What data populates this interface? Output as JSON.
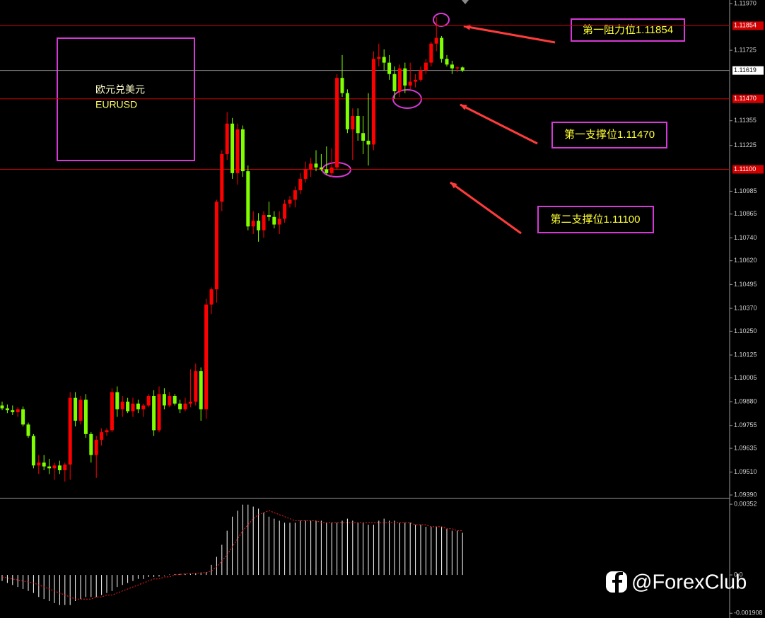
{
  "chart_data": [
    {
      "type": "candlestick",
      "label_name": "欧元兑美元",
      "label_symbol": "EURUSD",
      "annotations": [
        "第一阻力位1.11854",
        "第一支撑位1.11470",
        "第二支撑位1.11100"
      ],
      "up_color": "#ff0000",
      "down_color": "#7fff00",
      "ylim": [
        1.09379,
        1.11989
      ],
      "yticks": [
        {
          "value": 1.1197,
          "label": "1.11970"
        },
        1.11725,
        1.11355,
        1.11225,
        1.10985,
        1.10865,
        {
          "value": 1.1074,
          "label": "1.10740"
        },
        {
          "value": 1.1062,
          "label": "1.10620"
        },
        1.10495,
        {
          "value": 1.1037,
          "label": "1.10370"
        },
        {
          "value": 1.1025,
          "label": "1.10250"
        },
        1.10125,
        1.10005,
        {
          "value": 1.0988,
          "label": "1.09880"
        },
        1.09755,
        1.09635,
        {
          "value": 1.0951,
          "label": "1.09510"
        },
        {
          "value": 1.0939,
          "label": "1.09390"
        }
      ],
      "hlines": [
        {
          "value": 1.11854,
          "label": "1.11854",
          "color": "#d00000"
        },
        {
          "value": 1.1147,
          "label": "1.11470",
          "color": "#d00000"
        },
        {
          "value": 1.111,
          "label": "1.11100",
          "color": "#d00000"
        }
      ],
      "current_price": 1.11619,
      "current_color": "#8a8a8a",
      "open": [
        1.0986,
        1.09845,
        1.09835,
        1.09825,
        1.0984,
        1.0976,
        1.097,
        1.09545,
        1.0956,
        1.0954,
        1.0953,
        1.09545,
        1.0952,
        1.0955,
        1.099,
        1.0978,
        1.0989,
        1.0971,
        1.096,
        1.0968,
        1.0972,
        1.0973,
        1.0993,
        1.0984,
        1.0988,
        1.0983,
        1.0987,
        1.0984,
        1.0986,
        1.0991,
        1.0973,
        1.0992,
        1.0986,
        1.0991,
        1.0987,
        1.0984,
        1.0987,
        1.0988,
        1.1004,
        1.0984,
        1.1039,
        1.1047,
        1.1093,
        1.1118,
        1.1134,
        1.1108,
        1.1131,
        1.1109,
        1.108,
        1.1083,
        1.1078,
        1.1086,
        1.1085,
        1.1081,
        1.1084,
        1.1092,
        1.1094,
        1.1099,
        1.1105,
        1.111,
        1.1113,
        1.1111,
        1.111,
        1.1108,
        1.1111,
        1.1158,
        1.115,
        1.1131,
        1.1138,
        1.1129,
        1.1125,
        1.1123,
        1.1168,
        1.1169,
        1.1166,
        1.116,
        1.1151,
        1.1163,
        1.1154,
        1.1156,
        1.1157,
        1.1162,
        1.1166,
        1.1176,
        1.1179,
        1.1168,
        1.1165,
        1.1163,
        1.11635
      ],
      "high": [
        1.0988,
        1.09865,
        1.0986,
        1.0985,
        1.09855,
        1.0977,
        1.0971,
        1.096,
        1.096,
        1.0958,
        1.0956,
        1.0957,
        1.0956,
        1.0993,
        1.0993,
        1.0991,
        1.0992,
        1.0972,
        1.097,
        1.0974,
        1.0974,
        1.0995,
        1.0996,
        1.0991,
        1.099,
        1.099,
        1.0989,
        1.0987,
        1.0992,
        1.0994,
        1.0996,
        1.0995,
        1.0993,
        1.0992,
        1.0989,
        1.099,
        1.1005,
        1.1008,
        1.1006,
        1.1042,
        1.1048,
        1.1094,
        1.112,
        1.114,
        1.1137,
        1.1134,
        1.1133,
        1.1112,
        1.1088,
        1.1087,
        1.1088,
        1.1093,
        1.1088,
        1.1088,
        1.1094,
        1.1096,
        1.1101,
        1.1108,
        1.1114,
        1.1116,
        1.112,
        1.1118,
        1.1122,
        1.1121,
        1.116,
        1.117,
        1.1152,
        1.1142,
        1.1142,
        1.1138,
        1.115,
        1.1172,
        1.1176,
        1.1173,
        1.117,
        1.1164,
        1.1165,
        1.1166,
        1.1166,
        1.116,
        1.1164,
        1.1168,
        1.1177,
        1.119,
        1.118,
        1.117,
        1.1167,
        1.1164,
        1.1164
      ],
      "low": [
        1.09835,
        1.0982,
        1.0981,
        1.098,
        1.0975,
        1.0969,
        1.0953,
        1.095,
        1.0952,
        1.095,
        1.0947,
        1.095,
        1.0946,
        1.0947,
        1.0975,
        1.0976,
        1.0969,
        1.0956,
        1.0948,
        1.0965,
        1.097,
        1.0972,
        1.098,
        1.098,
        1.0982,
        1.098,
        1.0982,
        1.098,
        1.0985,
        1.097,
        1.0972,
        1.0984,
        1.0985,
        1.0986,
        1.0982,
        1.0983,
        1.0985,
        1.0986,
        1.0978,
        1.0979,
        1.1034,
        1.104,
        1.1088,
        1.1115,
        1.1105,
        1.1102,
        1.1106,
        1.1078,
        1.1076,
        1.1072,
        1.1074,
        1.1083,
        1.1079,
        1.1076,
        1.1082,
        1.109,
        1.109,
        1.1097,
        1.1103,
        1.1106,
        1.1109,
        1.1109,
        1.1107,
        1.1106,
        1.111,
        1.1148,
        1.1129,
        1.1115,
        1.1125,
        1.1118,
        1.1112,
        1.112,
        1.1164,
        1.1162,
        1.1157,
        1.1147,
        1.1148,
        1.115,
        1.1152,
        1.1153,
        1.1156,
        1.116,
        1.1164,
        1.1172,
        1.1166,
        1.1164,
        1.116,
        1.1161,
        1.1161
      ],
      "close": [
        1.09845,
        1.09835,
        1.09825,
        1.0984,
        1.0976,
        1.097,
        1.09545,
        1.0956,
        1.0954,
        1.0953,
        1.09545,
        1.0952,
        1.0955,
        1.099,
        1.0978,
        1.0989,
        1.0971,
        1.096,
        1.0968,
        1.0972,
        1.0973,
        1.0993,
        1.0984,
        1.0988,
        1.0983,
        1.0987,
        1.0984,
        1.0986,
        1.0991,
        1.0973,
        1.0992,
        1.0986,
        1.0991,
        1.0987,
        1.0984,
        1.0987,
        1.0988,
        1.1004,
        1.0984,
        1.1039,
        1.1047,
        1.1093,
        1.1118,
        1.1134,
        1.1108,
        1.1131,
        1.1109,
        1.108,
        1.1083,
        1.1078,
        1.1086,
        1.1085,
        1.1081,
        1.1084,
        1.1092,
        1.1094,
        1.1099,
        1.1105,
        1.111,
        1.1113,
        1.1111,
        1.111,
        1.1108,
        1.1111,
        1.1158,
        1.115,
        1.1131,
        1.1138,
        1.1129,
        1.1125,
        1.1123,
        1.1168,
        1.1169,
        1.1166,
        1.116,
        1.1151,
        1.1163,
        1.1154,
        1.1156,
        1.1157,
        1.1162,
        1.1166,
        1.1176,
        1.1179,
        1.1168,
        1.1165,
        1.1163,
        1.11635,
        1.11619
      ]
    },
    {
      "type": "macd",
      "ylim": [
        -0.00211,
        0.00377
      ],
      "yticks": [
        0.00352,
        {
          "value": 0,
          "label": "0.0"
        },
        -0.001908
      ],
      "histogram_color": "#ffffff",
      "signal_color": "#ff2020",
      "histogram": [
        -0.0003,
        -0.0004,
        -0.0005,
        -0.0006,
        -0.0007,
        -0.0008,
        -0.0009,
        -0.0011,
        -0.0012,
        -0.0013,
        -0.0014,
        -0.0015,
        -0.0015,
        -0.0015,
        -0.0013,
        -0.0012,
        -0.0011,
        -0.0011,
        -0.0011,
        -0.001,
        -0.0009,
        -0.0008,
        -0.0006,
        -0.0005,
        -0.0004,
        -0.0003,
        -0.0002,
        -0.0002,
        -0.0001,
        -0.0001,
        -8e-05,
        -2e-05,
        2e-05,
        4e-05,
        5e-05,
        5e-05,
        6e-05,
        8e-05,
        0.00012,
        0.00014,
        0.0005,
        0.0009,
        0.0015,
        0.0022,
        0.0029,
        0.0032,
        0.0035,
        0.0035,
        0.0034,
        0.0033,
        0.0031,
        0.0029,
        0.0028,
        0.0027,
        0.0026,
        0.0026,
        0.0026,
        0.0027,
        0.0027,
        0.0027,
        0.0027,
        0.0027,
        0.0026,
        0.0026,
        0.0026,
        0.0027,
        0.0028,
        0.0027,
        0.0026,
        0.0026,
        0.0025,
        0.0025,
        0.0027,
        0.0028,
        0.0027,
        0.0027,
        0.0026,
        0.0026,
        0.0026,
        0.0025,
        0.0025,
        0.0024,
        0.0024,
        0.0024,
        0.0024,
        0.0023,
        0.0022,
        0.0022,
        0.0021
      ],
      "signal": [
        -0.0001,
        -0.00015,
        -0.0002,
        -0.00025,
        -0.0003,
        -0.00035,
        -0.0004,
        -0.0005,
        -0.0006,
        -0.0007,
        -0.0008,
        -0.0009,
        -0.001,
        -0.0011,
        -0.0012,
        -0.0012,
        -0.0012,
        -0.0012,
        -0.0011,
        -0.0011,
        -0.001,
        -0.001,
        -0.0009,
        -0.0008,
        -0.0007,
        -0.0006,
        -0.0005,
        -0.0004,
        -0.0003,
        -0.0002,
        -0.0002,
        -0.0001,
        -0.0001,
        0,
        3e-05,
        5e-05,
        6e-05,
        8e-05,
        0.0001,
        0.00012,
        0.0002,
        0.0004,
        0.0007,
        0.001,
        0.0014,
        0.0018,
        0.0022,
        0.0025,
        0.0028,
        0.003,
        0.0031,
        0.0032,
        0.0031,
        0.003,
        0.0029,
        0.0028,
        0.0027,
        0.0027,
        0.0027,
        0.0027,
        0.0027,
        0.0026,
        0.0026,
        0.0026,
        0.0026,
        0.0026,
        0.0026,
        0.0026,
        0.0026,
        0.0026,
        0.0026,
        0.0026,
        0.0026,
        0.0026,
        0.0026,
        0.0026,
        0.0026,
        0.0026,
        0.0026,
        0.0025,
        0.0025,
        0.0025,
        0.0024,
        0.0024,
        0.0024,
        0.0023,
        0.0023,
        0.0022,
        0.0022
      ]
    }
  ],
  "watermark": "@ForexClub"
}
